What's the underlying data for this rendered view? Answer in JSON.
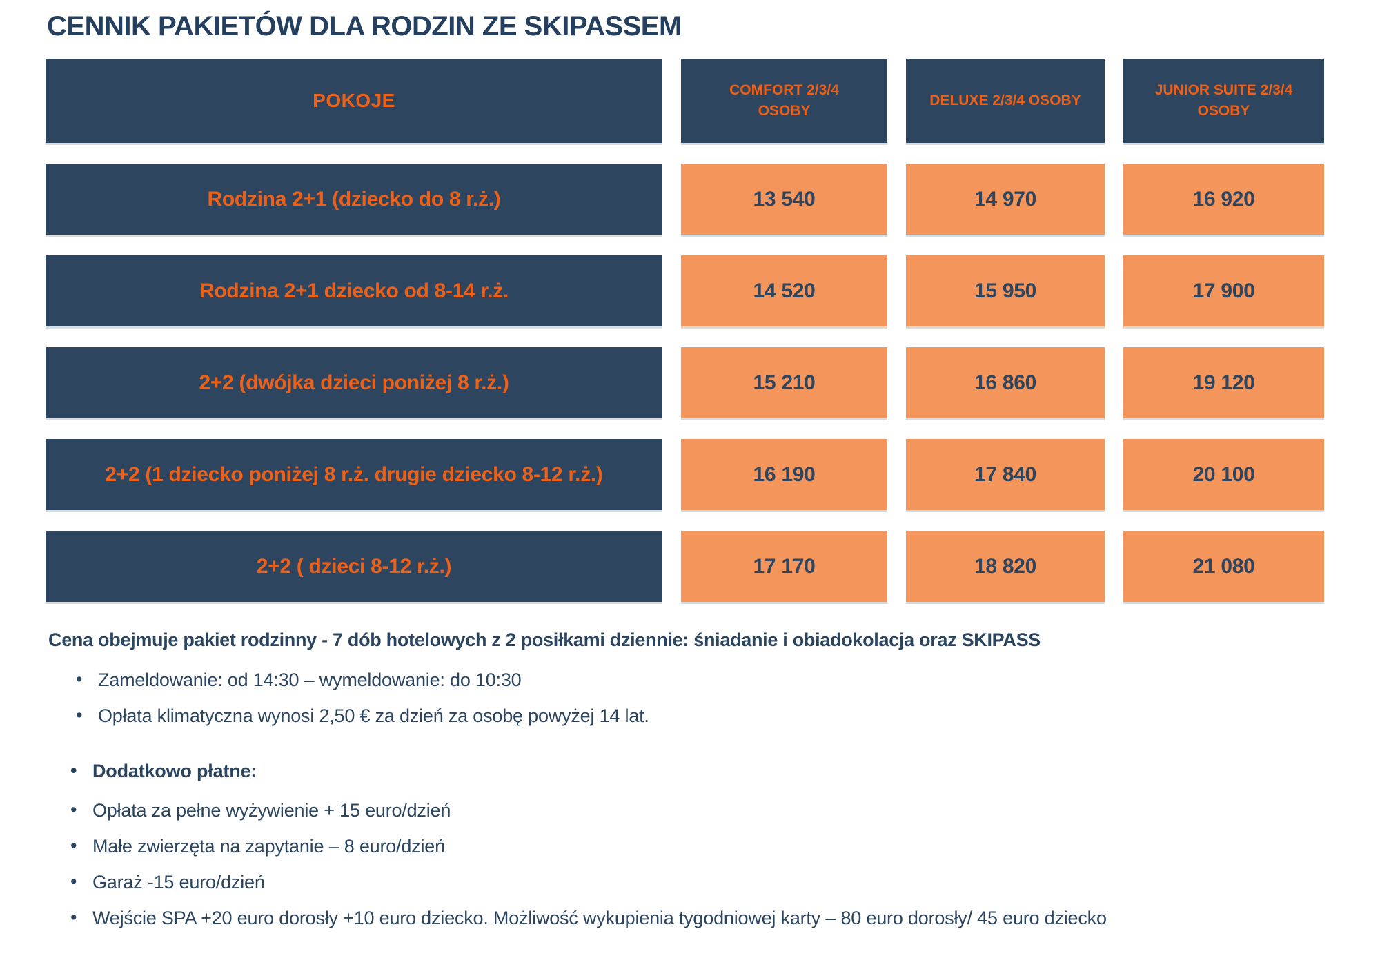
{
  "page": {
    "title": "CENNIK PAKIETÓW DLA RODZIN ZE SKIPASSEM"
  },
  "colors": {
    "navy_cell": "#2e4560",
    "orange_cell": "#f4965c",
    "orange_text": "#ed6018",
    "navy_text": "#2b4560"
  },
  "table": {
    "header": {
      "rooms_label": "POKOJE",
      "columns": [
        "COMFORT 2/3/4 OSOBY",
        "DELUXE 2/3/4 OSOBY",
        "JUNIOR SUITE 2/3/4 OSOBY"
      ]
    },
    "rows": [
      {
        "label": "Rodzina 2+1 (dziecko do 8 r.ż.)",
        "values": [
          "13 540",
          "14 970",
          "16 920"
        ]
      },
      {
        "label": "Rodzina 2+1 dziecko od 8-14 r.ż.",
        "values": [
          "14 520",
          "15 950",
          "17 900"
        ]
      },
      {
        "label": "2+2 (dwójka dzieci poniżej 8 r.ż.)",
        "values": [
          "15 210",
          "16 860",
          "19 120"
        ]
      },
      {
        "label": "2+2 (1 dziecko poniżej 8 r.ż. drugie dziecko 8-12 r.ż.)",
        "values": [
          "16 190",
          "17 840",
          "20 100"
        ]
      },
      {
        "label": "2+2 ( dzieci 8-12 r.ż.)",
        "values": [
          "17 170",
          "18 820",
          "21 080"
        ]
      }
    ]
  },
  "notes": {
    "intro": "Cena obejmuje pakiet rodzinny - 7 dób hotelowych z 2 posiłkami dziennie: śniadanie i obiadokolacja oraz SKIPASS",
    "bullets_top": [
      "Zameldowanie: od 14:30 – wymeldowanie: do 10:30",
      "Opłata klimatyczna wynosi 2,50 € za dzień za osobę powyżej 14 lat."
    ],
    "extra_heading": "Dodatkowo płatne:",
    "extra_bullets": [
      "Opłata za pełne wyżywienie + 15 euro/dzień",
      "Małe zwierzęta na zapytanie – 8 euro/dzień",
      "Garaż -15 euro/dzień",
      "Wejście SPA +20 euro dorosły +10 euro dziecko. Możliwość wykupienia tygodniowej karty – 80 euro dorosły/ 45 euro dziecko"
    ]
  }
}
